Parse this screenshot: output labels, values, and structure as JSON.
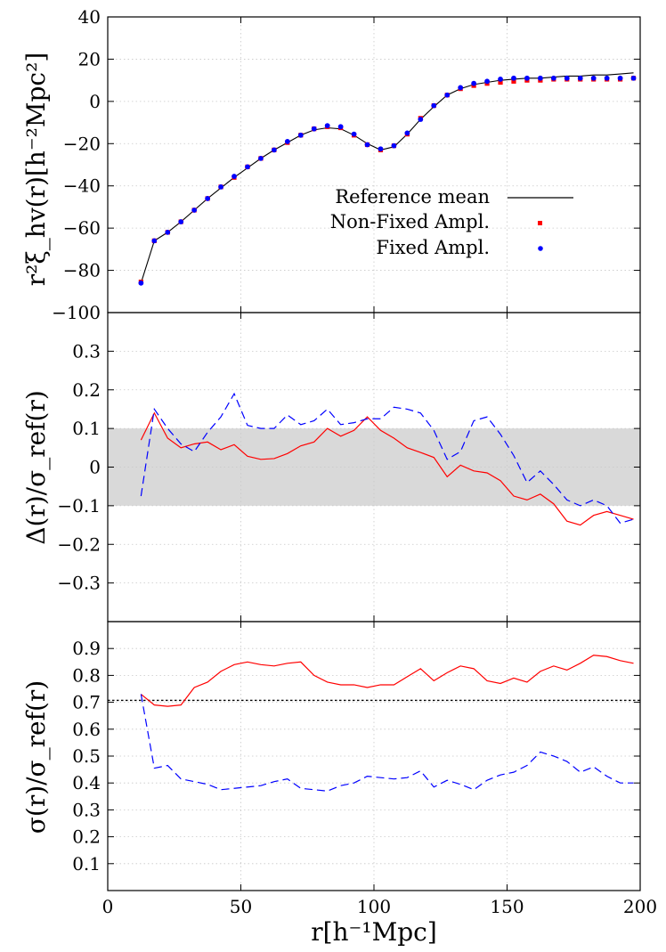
{
  "chart_data": [
    {
      "type": "line",
      "panel": "top",
      "ylabel": "r²ξ_hv(r)[h⁻²Mpc²]",
      "ylim": [
        -100,
        40
      ],
      "xlim": [
        0,
        200
      ],
      "yticks": [
        "40",
        "20",
        "0",
        "−20",
        "−40",
        "−60",
        "−80",
        "−100"
      ],
      "ytick_values": [
        40,
        20,
        0,
        -20,
        -40,
        -60,
        -80,
        -100
      ],
      "grid": true,
      "legend_position": "right",
      "series": [
        {
          "name": "Reference mean",
          "style": "line",
          "color": "#000000",
          "x": [
            12.5,
            17.5,
            22.5,
            27.5,
            32.5,
            37.5,
            42.5,
            47.5,
            52.5,
            57.5,
            62.5,
            67.5,
            72.5,
            77.5,
            82.5,
            87.5,
            92.5,
            97.5,
            102.5,
            107.5,
            112.5,
            117.5,
            122.5,
            127.5,
            132.5,
            137.5,
            142.5,
            147.5,
            152.5,
            157.5,
            162.5,
            167.5,
            172.5,
            177.5,
            182.5,
            187.5,
            192.5,
            197.5
          ],
          "y": [
            -86,
            -66,
            -62,
            -57,
            -51.5,
            -46,
            -41,
            -36,
            -31.5,
            -27,
            -23,
            -19.5,
            -16,
            -13.5,
            -12.5,
            -13,
            -16,
            -20,
            -23,
            -21.5,
            -15.5,
            -8.5,
            -2.5,
            3,
            6,
            8,
            9,
            10,
            10.5,
            11,
            11,
            11.5,
            12,
            12,
            12.5,
            12.5,
            13,
            13.5
          ]
        },
        {
          "name": "Non-Fixed Ampl.",
          "style": "points-square",
          "color": "#ff0000",
          "x": [
            12.5,
            17.5,
            22.5,
            27.5,
            32.5,
            37.5,
            42.5,
            47.5,
            52.5,
            57.5,
            62.5,
            67.5,
            72.5,
            77.5,
            82.5,
            87.5,
            92.5,
            97.5,
            102.5,
            107.5,
            112.5,
            117.5,
            122.5,
            127.5,
            132.5,
            137.5,
            142.5,
            147.5,
            152.5,
            157.5,
            162.5,
            167.5,
            172.5,
            177.5,
            182.5,
            187.5,
            192.5,
            197.5
          ],
          "y": [
            -85.5,
            -66,
            -62,
            -57,
            -51.5,
            -46,
            -40.5,
            -36,
            -31,
            -27,
            -23,
            -19.5,
            -16,
            -13,
            -12,
            -12.5,
            -16,
            -20.5,
            -23,
            -21,
            -15.5,
            -8,
            -2,
            3,
            6,
            7.5,
            8.5,
            9,
            9.5,
            10,
            10,
            10.5,
            10.5,
            10.5,
            10.5,
            10.5,
            10.5,
            11
          ]
        },
        {
          "name": "Fixed Ampl.",
          "style": "points-circle",
          "color": "#0000ff",
          "x": [
            12.5,
            17.5,
            22.5,
            27.5,
            32.5,
            37.5,
            42.5,
            47.5,
            52.5,
            57.5,
            62.5,
            67.5,
            72.5,
            77.5,
            82.5,
            87.5,
            92.5,
            97.5,
            102.5,
            107.5,
            112.5,
            117.5,
            122.5,
            127.5,
            132.5,
            137.5,
            142.5,
            147.5,
            152.5,
            157.5,
            162.5,
            167.5,
            172.5,
            177.5,
            182.5,
            187.5,
            192.5,
            197.5
          ],
          "y": [
            -86,
            -66,
            -62,
            -57,
            -51.5,
            -46,
            -40.5,
            -35.5,
            -31,
            -27,
            -23,
            -19,
            -16,
            -13,
            -11.5,
            -12,
            -15.5,
            -20.5,
            -22.5,
            -21,
            -15,
            -8.5,
            -2,
            3,
            6.5,
            8.5,
            9.5,
            10.5,
            11,
            11,
            11,
            11,
            11,
            11,
            11,
            11,
            11,
            11
          ]
        }
      ]
    },
    {
      "type": "line",
      "panel": "middle",
      "ylabel": "Δ(r)/σ_ref(r)",
      "ylim": [
        -0.4,
        0.4
      ],
      "xlim": [
        0,
        200
      ],
      "yticks": [
        "0.3",
        "0.2",
        "0.1",
        "0",
        "−0.1",
        "−0.2",
        "−0.3"
      ],
      "ytick_values": [
        0.3,
        0.2,
        0.1,
        0,
        -0.1,
        -0.2,
        -0.3
      ],
      "grid": true,
      "band": [
        -0.1,
        0.1
      ],
      "band_color": "#d9d9d9",
      "series": [
        {
          "style": "solid",
          "color": "#ff0000",
          "x": [
            12.5,
            17.5,
            22.5,
            27.5,
            32.5,
            37.5,
            42.5,
            47.5,
            52.5,
            57.5,
            62.5,
            67.5,
            72.5,
            77.5,
            82.5,
            87.5,
            92.5,
            97.5,
            102.5,
            107.5,
            112.5,
            117.5,
            122.5,
            127.5,
            132.5,
            137.5,
            142.5,
            147.5,
            152.5,
            157.5,
            162.5,
            167.5,
            172.5,
            177.5,
            182.5,
            187.5,
            192.5,
            197.5
          ],
          "y": [
            0.07,
            0.14,
            0.075,
            0.05,
            0.06,
            0.065,
            0.045,
            0.058,
            0.028,
            0.02,
            0.022,
            0.035,
            0.055,
            0.065,
            0.1,
            0.08,
            0.095,
            0.13,
            0.095,
            0.075,
            0.05,
            0.038,
            0.025,
            -0.025,
            0.005,
            -0.01,
            -0.015,
            -0.035,
            -0.075,
            -0.085,
            -0.07,
            -0.095,
            -0.14,
            -0.15,
            -0.125,
            -0.115,
            -0.125,
            -0.135
          ]
        },
        {
          "style": "dashed",
          "color": "#0000ff",
          "x": [
            12.5,
            17.5,
            22.5,
            27.5,
            32.5,
            37.5,
            42.5,
            47.5,
            52.5,
            57.5,
            62.5,
            67.5,
            72.5,
            77.5,
            82.5,
            87.5,
            92.5,
            97.5,
            102.5,
            107.5,
            112.5,
            117.5,
            122.5,
            127.5,
            132.5,
            137.5,
            142.5,
            147.5,
            152.5,
            157.5,
            162.5,
            167.5,
            172.5,
            177.5,
            182.5,
            187.5,
            192.5,
            197.5
          ],
          "y": [
            -0.075,
            0.15,
            0.1,
            0.06,
            0.04,
            0.09,
            0.13,
            0.19,
            0.108,
            0.1,
            0.1,
            0.135,
            0.11,
            0.12,
            0.15,
            0.11,
            0.115,
            0.125,
            0.125,
            0.155,
            0.15,
            0.14,
            0.095,
            0.02,
            0.04,
            0.12,
            0.13,
            0.085,
            0.03,
            -0.04,
            -0.01,
            -0.045,
            -0.085,
            -0.1,
            -0.085,
            -0.1,
            -0.145,
            -0.135
          ]
        }
      ]
    },
    {
      "type": "line",
      "panel": "bottom",
      "ylabel": "σ(r)/σ_ref(r)",
      "xlabel": "r[h⁻¹Mpc]",
      "ylim": [
        0,
        1
      ],
      "xlim": [
        0,
        200
      ],
      "xticks": [
        "0",
        "50",
        "100",
        "150",
        "200"
      ],
      "xtick_values": [
        0,
        50,
        100,
        150,
        200
      ],
      "yticks": [
        "0.9",
        "0.8",
        "0.7",
        "0.6",
        "0.5",
        "0.4",
        "0.3",
        "0.2",
        "0.1"
      ],
      "ytick_values": [
        0.9,
        0.8,
        0.7,
        0.6,
        0.5,
        0.4,
        0.3,
        0.2,
        0.1
      ],
      "grid": true,
      "reference_line": 0.7071,
      "series": [
        {
          "style": "solid",
          "color": "#ff0000",
          "x": [
            12.5,
            17.5,
            22.5,
            27.5,
            32.5,
            37.5,
            42.5,
            47.5,
            52.5,
            57.5,
            62.5,
            67.5,
            72.5,
            77.5,
            82.5,
            87.5,
            92.5,
            97.5,
            102.5,
            107.5,
            112.5,
            117.5,
            122.5,
            127.5,
            132.5,
            137.5,
            142.5,
            147.5,
            152.5,
            157.5,
            162.5,
            167.5,
            172.5,
            177.5,
            182.5,
            187.5,
            192.5,
            197.5
          ],
          "y": [
            0.73,
            0.69,
            0.685,
            0.69,
            0.755,
            0.775,
            0.815,
            0.84,
            0.85,
            0.84,
            0.835,
            0.845,
            0.85,
            0.8,
            0.775,
            0.765,
            0.765,
            0.755,
            0.765,
            0.765,
            0.795,
            0.825,
            0.78,
            0.81,
            0.835,
            0.825,
            0.78,
            0.77,
            0.79,
            0.775,
            0.815,
            0.835,
            0.82,
            0.845,
            0.875,
            0.87,
            0.855,
            0.845
          ]
        },
        {
          "style": "dashed",
          "color": "#0000ff",
          "x": [
            12.5,
            17.5,
            22.5,
            27.5,
            32.5,
            37.5,
            42.5,
            47.5,
            52.5,
            57.5,
            62.5,
            67.5,
            72.5,
            77.5,
            82.5,
            87.5,
            92.5,
            97.5,
            102.5,
            107.5,
            112.5,
            117.5,
            122.5,
            127.5,
            132.5,
            137.5,
            142.5,
            147.5,
            152.5,
            157.5,
            162.5,
            167.5,
            172.5,
            177.5,
            182.5,
            187.5,
            192.5,
            197.5
          ],
          "y": [
            0.73,
            0.455,
            0.465,
            0.415,
            0.405,
            0.395,
            0.375,
            0.38,
            0.385,
            0.39,
            0.405,
            0.415,
            0.38,
            0.375,
            0.37,
            0.39,
            0.4,
            0.425,
            0.42,
            0.415,
            0.42,
            0.445,
            0.385,
            0.41,
            0.395,
            0.375,
            0.41,
            0.43,
            0.44,
            0.465,
            0.515,
            0.5,
            0.48,
            0.44,
            0.46,
            0.425,
            0.4,
            0.4
          ]
        }
      ]
    }
  ]
}
